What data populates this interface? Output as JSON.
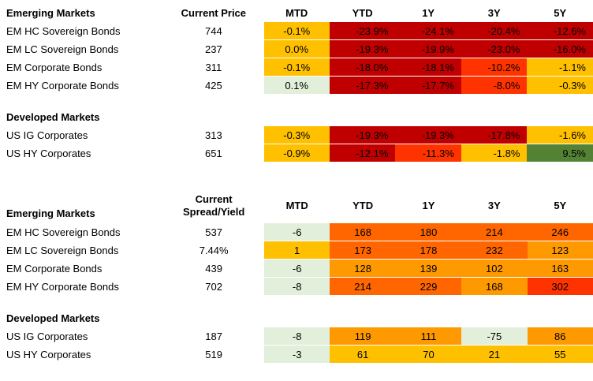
{
  "table1": {
    "col_name_header": "Emerging Markets",
    "col_first_header": "Current Price",
    "headers": [
      "MTD",
      "YTD",
      "1Y",
      "3Y",
      "5Y"
    ],
    "em_rows": [
      {
        "name": "EM HC Sovereign Bonds",
        "first": "744",
        "values": [
          "-0.1%",
          "-23.9%",
          "-24.1%",
          "-20.4%",
          "-12.6%"
        ]
      },
      {
        "name": "EM LC Sovereign Bonds",
        "first": "237",
        "values": [
          "0.0%",
          "-19.3%",
          "-19.9%",
          "-23.0%",
          "-16.0%"
        ]
      },
      {
        "name": "EM Corporate Bonds",
        "first": "311",
        "values": [
          "-0.1%",
          "-18.0%",
          "-18.1%",
          "-10.2%",
          "-1.1%"
        ]
      },
      {
        "name": "EM HY Corporate Bonds",
        "first": "425",
        "values": [
          "0.1%",
          "-17.3%",
          "-17.7%",
          "-8.0%",
          "-0.3%"
        ]
      }
    ],
    "dm_header": "Developed Markets",
    "dm_rows": [
      {
        "name": "US IG Corporates",
        "first": "313",
        "values": [
          "-0.3%",
          "-19.3%",
          "-19.3%",
          "-17.8%",
          "-1.6%"
        ]
      },
      {
        "name": "US HY Corporates",
        "first": "651",
        "values": [
          "-0.9%",
          "-12.1%",
          "-11.3%",
          "-1.8%",
          "9.5%"
        ]
      }
    ]
  },
  "table2": {
    "col_name_header": "Emerging Markets",
    "col_first_header_line1": "Current",
    "col_first_header_line2": "Spread/Yield",
    "headers": [
      "MTD",
      "YTD",
      "1Y",
      "3Y",
      "5Y"
    ],
    "em_rows": [
      {
        "name": "EM HC Sovereign Bonds",
        "first": "537",
        "values": [
          "-6",
          "168",
          "180",
          "214",
          "246"
        ]
      },
      {
        "name": "EM LC Sovereign Bonds",
        "first": "7.44%",
        "values": [
          "1",
          "173",
          "178",
          "232",
          "123"
        ]
      },
      {
        "name": "EM Corporate Bonds",
        "first": "439",
        "values": [
          "-6",
          "128",
          "139",
          "102",
          "163"
        ]
      },
      {
        "name": "EM HY Corporate Bonds",
        "first": "702",
        "values": [
          "-8",
          "214",
          "229",
          "168",
          "302"
        ]
      }
    ],
    "dm_header": "Developed Markets",
    "dm_rows": [
      {
        "name": "US IG Corporates",
        "first": "187",
        "values": [
          "-8",
          "119",
          "111",
          "-75",
          "86"
        ]
      },
      {
        "name": "US HY Corporates",
        "first": "519",
        "values": [
          "-3",
          "61",
          "70",
          "21",
          "55"
        ]
      }
    ]
  },
  "colors": {
    "dark_red": "#C00000",
    "red_orange": "#FF3300",
    "orange": "#FF6600",
    "light_orange": "#FF9900",
    "amber": "#FFC000",
    "light_green": "#E2EFDA",
    "olive_green": "#548235"
  },
  "cell_colors": {
    "table1_em": [
      [
        "amber",
        "dark_red",
        "dark_red",
        "dark_red",
        "dark_red"
      ],
      [
        "amber",
        "dark_red",
        "dark_red",
        "dark_red",
        "dark_red"
      ],
      [
        "amber",
        "dark_red",
        "dark_red",
        "red_orange",
        "amber"
      ],
      [
        "light_green",
        "dark_red",
        "dark_red",
        "red_orange",
        "amber"
      ]
    ],
    "table1_dm": [
      [
        "amber",
        "dark_red",
        "dark_red",
        "dark_red",
        "amber"
      ],
      [
        "amber",
        "dark_red",
        "red_orange",
        "amber",
        "olive_green"
      ]
    ],
    "table2_em": [
      [
        "light_green",
        "orange",
        "orange",
        "orange",
        "orange"
      ],
      [
        "amber",
        "orange",
        "orange",
        "orange",
        "light_orange"
      ],
      [
        "light_green",
        "light_orange",
        "light_orange",
        "light_orange",
        "light_orange"
      ],
      [
        "light_green",
        "orange",
        "orange",
        "light_orange",
        "red_orange"
      ]
    ],
    "table2_dm": [
      [
        "light_green",
        "light_orange",
        "light_orange",
        "light_green",
        "light_orange"
      ],
      [
        "light_green",
        "amber",
        "amber",
        "amber",
        "amber"
      ]
    ]
  }
}
